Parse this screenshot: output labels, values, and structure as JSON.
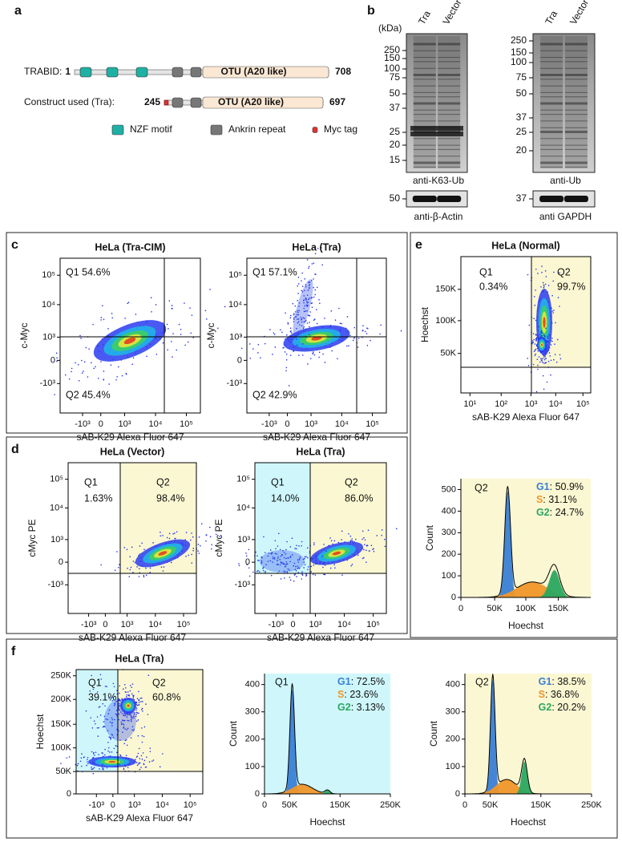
{
  "panel_a": {
    "letter": "a",
    "proteins": [
      {
        "name": "TRABID:",
        "start": "1",
        "domain": "OTU (A20 like)",
        "end": "708"
      },
      {
        "name": "Construct used (Tra):",
        "start": "245",
        "domain": "OTU (A20 like)",
        "end": "697"
      }
    ],
    "legend": [
      "NZF motif",
      "Ankrin repeat",
      "Myc tag"
    ]
  },
  "panel_b": {
    "letter": "b",
    "unit": "(kDa)",
    "blots": [
      {
        "lanes": [
          "Tra",
          "Vector"
        ],
        "markers": [
          "250",
          "150",
          "100",
          "75",
          "50",
          "37",
          "25",
          "20",
          "15"
        ],
        "label": "anti-K63-Ub",
        "loading_marker": "50",
        "loading_label": "anti-β-Actin"
      },
      {
        "lanes": [
          "Tra",
          "Vector"
        ],
        "markers": [
          "250",
          "150",
          "100",
          "75",
          "50",
          "37",
          "25",
          "20"
        ],
        "label": "anti-Ub",
        "loading_marker": "37",
        "loading_label": "anti GAPDH"
      }
    ]
  },
  "flow_panels": [
    {
      "letter": "c",
      "plots": [
        {
          "kind": "scatter",
          "title": "HeLa (Tra-CIM)",
          "y_label": "c-Myc",
          "x_label": "sAB-K29 Alexa Fluor 647",
          "x_ticks": [
            "-10³",
            "0",
            "10³",
            "10⁴",
            "10⁵"
          ],
          "y_ticks": [
            "10⁵",
            "10⁴",
            "10³",
            "0",
            "-10³"
          ],
          "gates": [
            "Q1 54.6%",
            "Q2 45.4%"
          ]
        },
        {
          "kind": "scatter",
          "title": "HeLa (Tra)",
          "y_label": "c-Myc",
          "x_label": "sAB-K29 Alexa Fluor 647",
          "x_ticks": [
            "-10³",
            "0",
            "10³",
            "10⁴",
            "10⁵"
          ],
          "y_ticks": [
            "10⁵",
            "10⁴",
            "10³",
            "0",
            "-10³"
          ],
          "gates": [
            "Q1 57.1%",
            "Q2 42.9%"
          ]
        }
      ]
    },
    {
      "letter": "d",
      "plots": [
        {
          "kind": "scatter",
          "title": "HeLa (Vector)",
          "y_label": "cMyc PE",
          "x_label": "sAB-K29 Alexa Fluor 647",
          "x_ticks": [
            "-10³",
            "0",
            "10³",
            "10⁴",
            "10⁵"
          ],
          "y_ticks": [
            "10⁵",
            "10⁴",
            "10³",
            "0",
            "-10³"
          ],
          "gates": [
            "Q1",
            "1.63%",
            "Q2",
            "98.4%"
          ]
        },
        {
          "kind": "scatter",
          "title": "HeLa (Tra)",
          "y_label": "cMyc PE",
          "x_label": "sAB-K29 Alexa Fluor 647",
          "x_ticks": [
            "-10³",
            "0",
            "10³",
            "10⁴",
            "10⁵"
          ],
          "y_ticks": [
            "10⁵",
            "10⁴",
            "10³",
            "0",
            "-10³"
          ],
          "gates": [
            "Q1",
            "14.0%",
            "Q2",
            "86.0%"
          ]
        }
      ]
    },
    {
      "letter": "e",
      "plots": [
        {
          "kind": "scatter",
          "title": "HeLa (Normal)",
          "y_label": "Hoechst",
          "x_label": "sAB-K29 Alexa Fluor 647",
          "x_ticks": [
            "10¹",
            "10²",
            "10³",
            "10⁴",
            "10⁵"
          ],
          "y_ticks": [
            "150K",
            "100K",
            "50K"
          ],
          "gates": [
            "Q1",
            "0.34%",
            "Q2",
            "99.7%"
          ]
        },
        {
          "kind": "histogram",
          "y_label": "Count",
          "x_label": "Hoechst",
          "x_ticks": [
            "0",
            "50K",
            "100K",
            "150K"
          ],
          "y_ticks": [
            "0",
            "100",
            "200",
            "300",
            "400",
            "500"
          ],
          "gate": "Q2",
          "phases": [
            {
              "name": "G1",
              "value": ": 50.9%"
            },
            {
              "name": "S",
              "value": ": 31.1%"
            },
            {
              "name": "G2",
              "value": ": 24.7%"
            }
          ]
        }
      ]
    },
    {
      "letter": "f",
      "plots": [
        {
          "kind": "scatter",
          "title": "HeLa (Tra)",
          "y_label": "Hoechst",
          "x_label": "sAB-K29 Alexa Fluor 647",
          "x_ticks": [
            "-10³",
            "0",
            "10³",
            "10⁴",
            "10⁵"
          ],
          "y_ticks": [
            "250K",
            "200K",
            "150K",
            "100K",
            "50K",
            "0"
          ],
          "gates": [
            "Q1",
            "39.1%",
            "Q2",
            "60.8%"
          ]
        },
        {
          "kind": "histogram",
          "y_label": "Count",
          "x_label": "Hoechst",
          "x_ticks": [
            "0",
            "50K",
            "150K",
            "250K"
          ],
          "y_ticks": [
            "0",
            "100",
            "200",
            "300",
            "400"
          ],
          "gate": "Q1",
          "phases": [
            {
              "name": "G1",
              "value": ": 72.5%"
            },
            {
              "name": "S",
              "value": ": 23.6%"
            },
            {
              "name": "G2",
              "value": ": 3.13%"
            }
          ]
        },
        {
          "kind": "histogram",
          "y_label": "Count",
          "x_label": "Hoechst",
          "x_ticks": [
            "0",
            "50K",
            "150K",
            "250K"
          ],
          "y_ticks": [
            "0",
            "100",
            "200",
            "300",
            "400"
          ],
          "gate": "Q2",
          "phases": [
            {
              "name": "G1",
              "value": ": 38.5%"
            },
            {
              "name": "S",
              "value": ": 36.8%"
            },
            {
              "name": "G2",
              "value": ": 20.2%"
            }
          ]
        }
      ]
    }
  ]
}
